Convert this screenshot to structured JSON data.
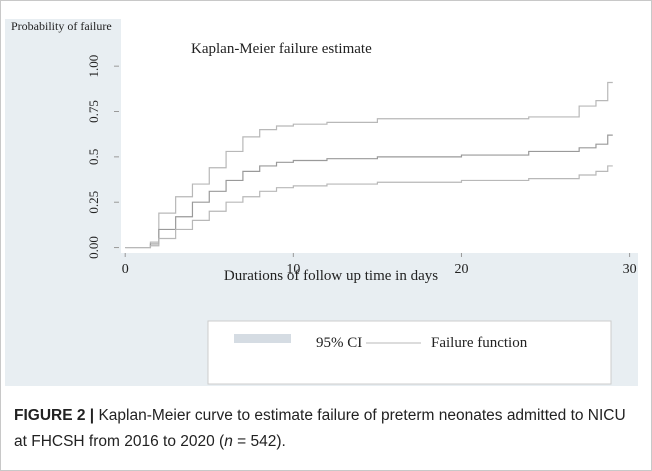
{
  "chart_data": {
    "type": "line",
    "title": "Kaplan-Meier failure estimate",
    "y_axis_label": "Probability of failure",
    "x_axis_label": "Durations of follow up time in days",
    "x": [
      0,
      1.5,
      2,
      3,
      4,
      5,
      6,
      7,
      8,
      9,
      10,
      12,
      15,
      20,
      24,
      27,
      28,
      28.7,
      29
    ],
    "series": [
      {
        "name": "95% CI",
        "color": "#b8b8b8",
        "values": [
          0,
          0.03,
          0.19,
          0.28,
          0.35,
          0.44,
          0.53,
          0.61,
          0.65,
          0.67,
          0.68,
          0.69,
          0.71,
          0.71,
          0.72,
          0.78,
          0.81,
          0.91,
          0.91
        ]
      },
      {
        "name": "Failure function",
        "color": "#9a9a9a",
        "values": [
          0,
          0.02,
          0.1,
          0.17,
          0.25,
          0.31,
          0.37,
          0.42,
          0.45,
          0.47,
          0.48,
          0.49,
          0.5,
          0.51,
          0.53,
          0.55,
          0.57,
          0.62,
          0.62
        ]
      },
      {
        "name": "95% CI",
        "color": "#b8b8b8",
        "values": [
          0,
          0.01,
          0.05,
          0.1,
          0.15,
          0.2,
          0.25,
          0.28,
          0.31,
          0.33,
          0.34,
          0.35,
          0.36,
          0.37,
          0.38,
          0.4,
          0.42,
          0.45,
          0.45
        ]
      }
    ],
    "legend": [
      {
        "name": "95% CI",
        "color": "#d5dce3"
      },
      {
        "name": "Failure function",
        "color": "#b8b8b8"
      }
    ],
    "xlim": [
      -0.25,
      30.5
    ],
    "xticks": [
      0,
      10,
      20,
      30
    ],
    "ylim": [
      -0.03,
      1.26
    ],
    "yticks": [
      {
        "value": 0,
        "label": "0.00"
      },
      0.25,
      0.5,
      0.75,
      {
        "value": 1,
        "label": "1.00"
      }
    ]
  },
  "caption": {
    "label": "FIGURE 2 |",
    "text": " Kaplan-Meier curve to estimate failure of preterm neonates admitted to NICU at FHCSH from 2016 to 2020 (",
    "italic": "n",
    "end": " = 542)."
  }
}
